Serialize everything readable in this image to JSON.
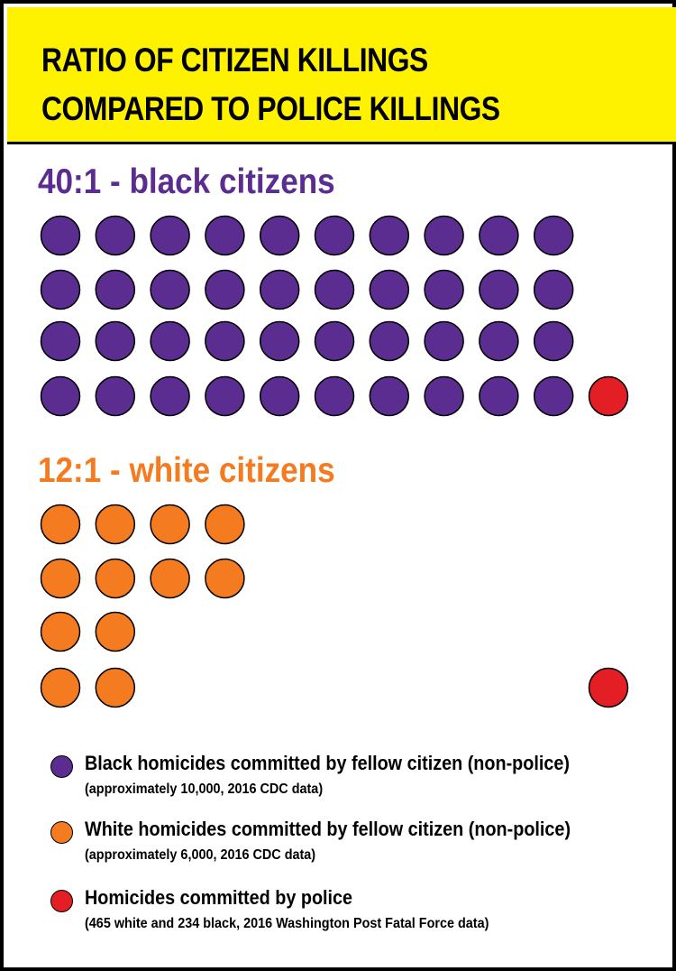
{
  "title": {
    "line1": "RATIO OF CITIZEN KILLINGS",
    "line2": "COMPARED TO POLICE KILLINGS"
  },
  "colors": {
    "banner": "#fff200",
    "black_citizen": "#5c2d91",
    "white_citizen": "#f47b20",
    "police": "#e31e24"
  },
  "chart_data": {
    "type": "pictograph",
    "groups": [
      {
        "heading": "40:1 - black citizens",
        "citizen_dots": 40,
        "police_dots": 1,
        "citizen_rows": [
          10,
          10,
          10,
          10
        ],
        "citizen_color": "#5c2d91"
      },
      {
        "heading": "12:1 - white citizens",
        "citizen_dots": 12,
        "police_dots": 1,
        "citizen_rows": [
          4,
          4,
          2,
          2
        ],
        "citizen_color": "#f47b20"
      }
    ],
    "legend": [
      {
        "label": "Black homicides committed by fellow citizen (non-police)",
        "note": "(approximately 10,000, 2016 CDC data)",
        "color": "#5c2d91"
      },
      {
        "label": "White homicides committed by fellow citizen (non-police)",
        "note": "(approximately 6,000, 2016 CDC data)",
        "color": "#f47b20"
      },
      {
        "label": "Homicides committed by police",
        "note": "(465 white and 234 black, 2016 Washington Post Fatal Force data)",
        "color": "#e31e24"
      }
    ]
  }
}
